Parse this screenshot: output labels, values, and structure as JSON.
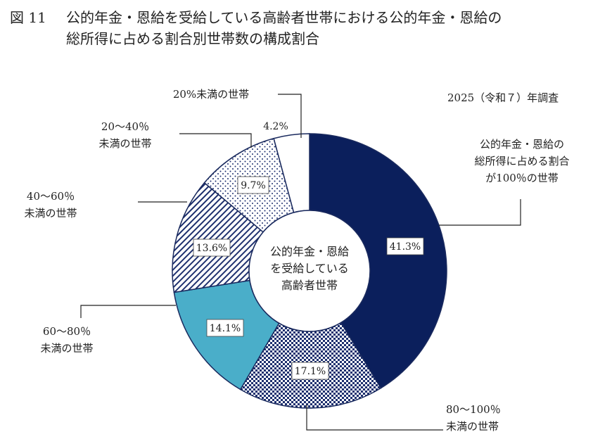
{
  "title": {
    "figure_number": "図 11",
    "line1": "公的年金・恩給を受給している高齢者世帯における公的年金・恩給の",
    "line2": "総所得に占める割合別世帯数の構成割合"
  },
  "survey_note": "2025（令和７）年調査",
  "chart_data": {
    "type": "pie",
    "donut": true,
    "title": "公的年金・恩給を受給している高齢者世帯における公的年金・恩給の総所得に占める割合別世帯数の構成割合",
    "center_label": [
      "公的年金・恩給",
      "を受給している",
      "高齢者世帯"
    ],
    "slices": [
      {
        "label": [
          "公的年金・恩給の",
          "総所得に占める割合",
          "が100％の世帯"
        ],
        "value": 41.3,
        "value_label": "41.3%",
        "color": "#0b1f5c",
        "pattern": "solid"
      },
      {
        "label": [
          "80～100％",
          "未満の世帯"
        ],
        "value": 17.1,
        "value_label": "17.1%",
        "color": "#1d2f6e",
        "pattern": "checker"
      },
      {
        "label": [
          "60～80％",
          "未満の世帯"
        ],
        "value": 14.1,
        "value_label": "14.1%",
        "color": "#4aaec9",
        "pattern": "solid"
      },
      {
        "label": [
          "40～60％",
          "未満の世帯"
        ],
        "value": 13.6,
        "value_label": "13.6%",
        "color": "#1d2f6e",
        "pattern": "diagonal"
      },
      {
        "label": [
          "20～40％",
          "未満の世帯"
        ],
        "value": 9.7,
        "value_label": "9.7%",
        "color": "#1d2f6e",
        "pattern": "dots"
      },
      {
        "label": [
          "20%未満の世帯"
        ],
        "value": 4.2,
        "value_label": "4.2%",
        "color": "#ffffff",
        "pattern": "none"
      }
    ],
    "start": "12 o'clock",
    "direction": "clockwise"
  }
}
